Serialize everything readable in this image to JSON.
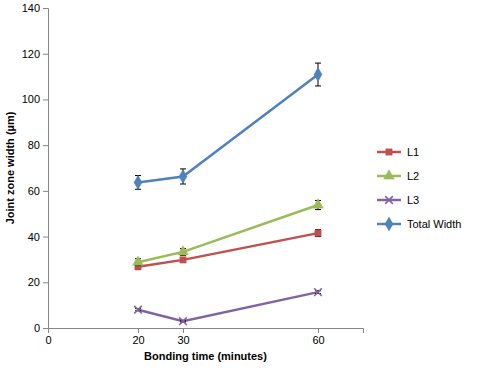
{
  "chart_data": {
    "type": "line",
    "x_label": "Bonding time (minutes)",
    "y_label": "Joint zone width (µm)",
    "x": [
      20,
      30,
      60
    ],
    "xlim": [
      0,
      70
    ],
    "xticks": [
      0,
      20,
      30,
      60
    ],
    "ylim": [
      0,
      140
    ],
    "yticks": [
      0,
      20,
      40,
      60,
      80,
      100,
      120,
      140
    ],
    "grid": false,
    "legend": "right",
    "series": [
      {
        "name": "L1",
        "color": "#c0504d",
        "marker": "square",
        "values": [
          26.8,
          29.8,
          41.5
        ],
        "errors": [
          1.2,
          1.0,
          1.5
        ]
      },
      {
        "name": "L2",
        "color": "#9bbb59",
        "marker": "triangle",
        "values": [
          28.8,
          33.3,
          53.8
        ],
        "errors": [
          1.5,
          1.5,
          2.0
        ]
      },
      {
        "name": "L3",
        "color": "#8064a2",
        "marker": "x",
        "values": [
          8.0,
          3.0,
          15.7
        ],
        "errors": [
          0.5,
          0.4,
          0.6
        ]
      },
      {
        "name": "Total Width",
        "color": "#4f81bd",
        "marker": "diamond",
        "values": [
          63.7,
          66.3,
          110.9
        ],
        "errors": [
          3.0,
          3.3,
          5.0
        ]
      }
    ]
  }
}
